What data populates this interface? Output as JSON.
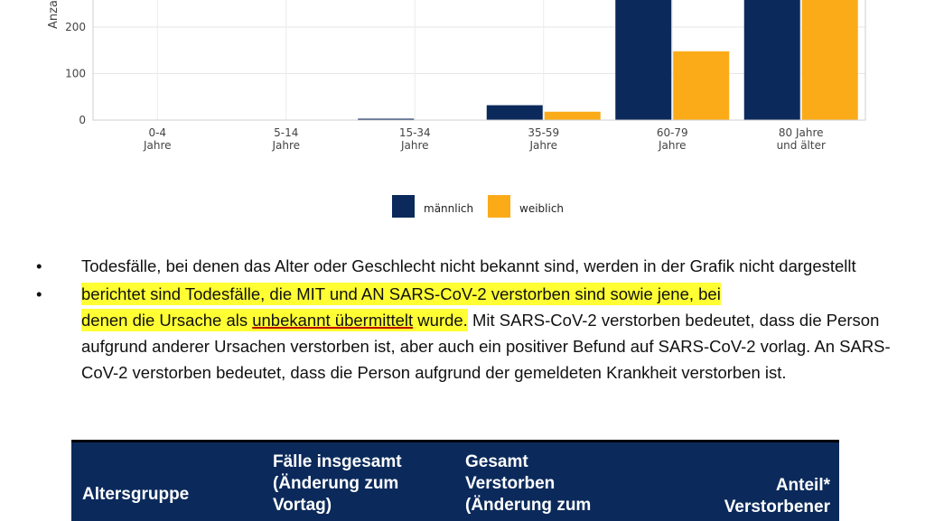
{
  "chart_data": {
    "type": "bar",
    "ylabel": "Anzahl",
    "yticks": [
      0,
      100,
      200
    ],
    "ylim": [
      0,
      270
    ],
    "categories": [
      [
        "0-4",
        "Jahre"
      ],
      [
        "5-14",
        "Jahre"
      ],
      [
        "15-34",
        "Jahre"
      ],
      [
        "35-59",
        "Jahre"
      ],
      [
        "60-79",
        "Jahre"
      ],
      [
        "80 Jahre",
        "und älter"
      ]
    ],
    "series": [
      {
        "name": "männlich",
        "color": "#0b2a5b",
        "values": [
          0,
          0,
          3,
          32,
          270,
          270
        ]
      },
      {
        "name": "weiblich",
        "color": "#fbab18",
        "values": [
          0,
          0,
          0,
          18,
          148,
          270
        ]
      }
    ],
    "grid": true,
    "legend_position": "bottom"
  },
  "bullets": {
    "marker": "•",
    "b1": "Todesfälle, bei denen das Alter oder Geschlecht nicht bekannt sind, werden in der Grafik nicht dargestellt",
    "b2_hl_1": "berichtet sind Todesfälle, die MIT und AN SARS-CoV-2 verstorben sind sowie jene, bei",
    "b2_hl_2a": "denen die Ursache als ",
    "b2_hl_2u": "unbekannt übermittelt",
    "b2_hl_2b": " wurde.",
    "b2_rest": " Mit SARS-CoV-2 verstorben bedeutet, dass die Person aufgrund anderer Ursachen verstorben ist, aber auch ein positiver Befund auf SARS-CoV-2 vorlag. An SARS-CoV-2 verstorben bedeutet, dass die Person aufgrund der gemeldeten Krankheit verstorben ist."
  },
  "table": {
    "h1": "Altersgruppe",
    "h2_l1": "Fälle insgesamt",
    "h2_l2": "(Änderung zum",
    "h2_l3": "Vortag)",
    "h3_l1": "Gesamt",
    "h3_l2": "Verstorben",
    "h3_l3": "(Änderung zum",
    "h4_l1": "Anteil*",
    "h4_l2": "Verstorbener"
  }
}
